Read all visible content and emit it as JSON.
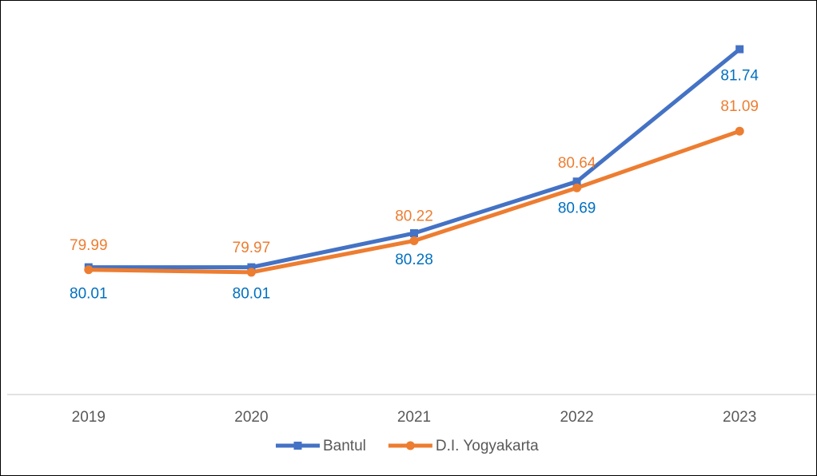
{
  "chart_data": {
    "type": "line",
    "categories": [
      "2019",
      "2020",
      "2021",
      "2022",
      "2023"
    ],
    "series": [
      {
        "name": "Bantul",
        "color": "#4472c4",
        "label_color": "#0070c0",
        "marker": "square",
        "values": [
          80.01,
          80.01,
          80.28,
          80.69,
          81.74
        ]
      },
      {
        "name": "D.I. Yogyakarta",
        "color": "#ed7d31",
        "label_color": "#ed7d31",
        "marker": "circle",
        "values": [
          79.99,
          79.97,
          80.22,
          80.64,
          81.09
        ]
      }
    ],
    "ylim": [
      79,
      82
    ],
    "legend": "bottom"
  }
}
